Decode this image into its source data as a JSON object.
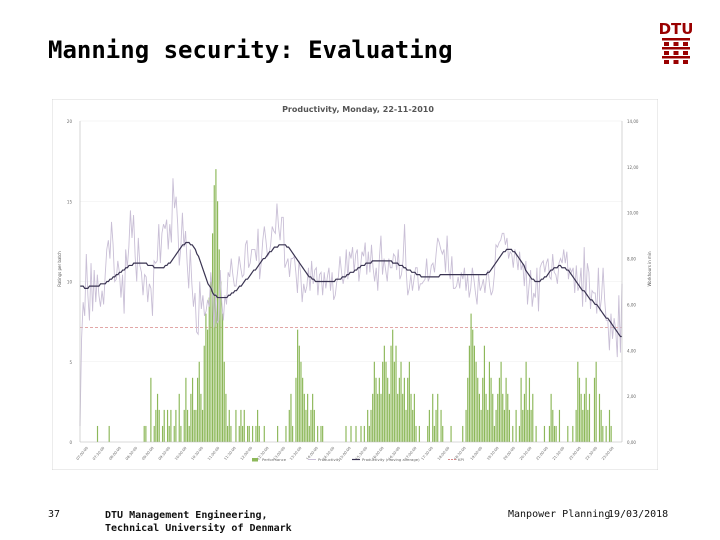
{
  "slide": {
    "title": "Manning security: Evaluating",
    "logo_text": "DTU"
  },
  "footer": {
    "page_number": "37",
    "org_line1": "DTU Management Engineering,",
    "org_line2": "Technical University of Denmark",
    "topic": "Manpower Planning",
    "date": "19/03/2018"
  },
  "colors": {
    "bar": "#8db85a",
    "productivity": "#c9bfd6",
    "moving_avg": "#3a3452",
    "target": "#d98a8a",
    "logo": "#990000"
  },
  "chart_data": {
    "type": "bar",
    "title": "Productivity, Monday, 22-11-2010",
    "ylabel": "Ratings per batch",
    "y2label": "Workhours in min",
    "ylim": [
      0,
      20
    ],
    "y2lim": [
      0,
      14
    ],
    "left_ticks": [
      "20",
      "15",
      "10",
      "5",
      "0"
    ],
    "right_ticks": [
      "14,00",
      "12,00",
      "10,00",
      "8,00",
      "6,00",
      "4,00",
      "2,00",
      "0,00"
    ],
    "x_labels": [
      "07:00:00",
      "07:30:00",
      "08:00:00",
      "08:30:00",
      "09:00:00",
      "09:30:00",
      "10:00:00",
      "10:30:00",
      "11:00:00",
      "11:30:00",
      "12:00:00",
      "12:30:00",
      "13:00:00",
      "13:30:00",
      "14:00:00",
      "14:30:00",
      "15:00:00",
      "15:30:00",
      "16:00:00",
      "16:30:00",
      "17:00:00",
      "17:30:00",
      "18:00:00",
      "18:30:00",
      "19:00:00",
      "19:30:00",
      "20:00:00",
      "20:30:00",
      "21:00:00",
      "21:30:00",
      "22:00:00",
      "22:30:00",
      "23:00:00"
    ],
    "legend": [
      "Performance",
      "Productivity",
      "Productivity (moving average)",
      "KPI"
    ],
    "legend_position": "bottom",
    "target_value": 5.0,
    "bars": [
      0,
      0,
      0,
      0,
      0,
      0,
      0,
      0,
      0,
      0,
      1,
      0,
      0,
      0,
      0,
      0,
      0,
      1,
      0,
      0,
      0,
      0,
      0,
      0,
      0,
      0,
      0,
      0,
      0,
      0,
      0,
      0,
      0,
      0,
      0,
      0,
      0,
      0,
      1,
      1,
      0,
      0,
      4,
      0,
      1,
      2,
      3,
      2,
      0,
      1,
      2,
      0,
      2,
      1,
      2,
      0,
      1,
      2,
      0,
      3,
      1,
      0,
      2,
      4,
      2,
      1,
      3,
      4,
      2,
      2,
      4,
      5,
      3,
      2,
      6,
      8,
      7,
      9,
      10,
      13,
      16,
      17,
      15,
      12,
      10,
      8,
      5,
      3,
      1,
      2,
      1,
      0,
      0,
      2,
      0,
      1,
      2,
      1,
      2,
      0,
      1,
      1,
      0,
      1,
      0,
      1,
      2,
      1,
      0,
      0,
      1,
      0,
      0,
      0,
      0,
      0,
      0,
      0,
      1,
      0,
      0,
      0,
      0,
      1,
      0,
      2,
      3,
      1,
      0,
      4,
      7,
      6,
      5,
      4,
      3,
      2,
      3,
      1,
      2,
      3,
      2,
      0,
      1,
      0,
      1,
      1,
      0,
      0,
      0,
      0,
      0,
      0,
      0,
      0,
      0,
      0,
      0,
      0,
      0,
      1,
      0,
      0,
      1,
      0,
      0,
      1,
      0,
      0,
      1,
      0,
      1,
      0,
      2,
      1,
      2,
      3,
      5,
      4,
      3,
      4,
      3,
      5,
      6,
      5,
      4,
      3,
      6,
      7,
      5,
      6,
      3,
      4,
      5,
      3,
      4,
      2,
      4,
      5,
      3,
      2,
      3,
      1,
      0,
      1,
      0,
      0,
      0,
      0,
      1,
      2,
      0,
      3,
      1,
      2,
      3,
      0,
      2,
      1,
      0,
      0,
      0,
      0,
      1,
      0,
      0,
      0,
      0,
      0,
      0,
      1,
      0,
      2,
      4,
      6,
      8,
      7,
      6,
      5,
      4,
      3,
      2,
      4,
      6,
      3,
      2,
      5,
      4,
      3,
      1,
      2,
      3,
      4,
      5,
      3,
      2,
      4,
      3,
      2,
      0,
      1,
      0,
      2,
      0,
      1,
      4,
      2,
      3,
      5,
      2,
      4,
      2,
      3,
      0,
      1,
      0,
      0,
      0,
      0,
      1,
      0,
      0,
      1,
      3,
      2,
      1,
      1,
      0,
      2,
      0,
      0,
      0,
      0,
      1,
      0,
      0,
      1,
      0,
      2,
      5,
      4,
      3,
      2,
      3,
      4,
      2,
      3,
      0,
      0,
      4,
      5,
      0,
      3,
      2,
      1,
      0,
      1,
      0,
      2,
      1,
      0,
      0,
      0,
      0,
      0,
      0
    ],
    "productivity": [
      0.7,
      4.5,
      6.1,
      5.5,
      8.2,
      6.4,
      5.3,
      7.8,
      5.7,
      7.5,
      6.1,
      7.3,
      6.4,
      5.9,
      6.6,
      6.0,
      7.3,
      8.4,
      8.8,
      8.0,
      9.6,
      8.6,
      7.0,
      7.1,
      7.9,
      7.4,
      6.3,
      7.3,
      5.6,
      8.4,
      7.6,
      8.5,
      10.1,
      8.9,
      9.9,
      8.1,
      7.0,
      8.9,
      7.7,
      7.4,
      6.4,
      7.3,
      7.2,
      6.1,
      6.9,
      6.7,
      5.5,
      7.9,
      7.8,
      7.9,
      9.5,
      7.8,
      9.1,
      9.5,
      9.3,
      9.7,
      8.4,
      9.5,
      8.7,
      11.5,
      10.2,
      10.7,
      9.5,
      7.7,
      8.5,
      10.0,
      8.5,
      9.2,
      7.8,
      6.7,
      8.4,
      6.9,
      5.9,
      6.5,
      4.8,
      4.7,
      7.0,
      5.8,
      6.4,
      5.5,
      5.7,
      6.2,
      5.9,
      7.4,
      6.6,
      5.0,
      6.5,
      5.2,
      5.3,
      7.5,
      6.1,
      5.3,
      6.4,
      6.0,
      7.4,
      7.2,
      8.0,
      7.3,
      6.8,
      6.8,
      7.4,
      8.1,
      7.6,
      7.2,
      7.3,
      8.6,
      8.8,
      7.6,
      7.8,
      8.4,
      8.4,
      8.4,
      7.9,
      9.3,
      7.1,
      7.8,
      8.8,
      9.4,
      8.8,
      8.1,
      8.2,
      8.6,
      9.4,
      9.2,
      9.1,
      10.4,
      9.4,
      8.8,
      9.8,
      9.8,
      7.6,
      7.8,
      8.0,
      7.2,
      8.0,
      8.0,
      8.1,
      7.4,
      6.5,
      7.9,
      7.4,
      6.1,
      6.9,
      6.5,
      6.8,
      7.6,
      6.6,
      7.9,
      6.9,
      7.5,
      7.6,
      6.4,
      7.3,
      7.4,
      6.4,
      7.4,
      6.7,
      7.2,
      7.6,
      6.6,
      7.4,
      6.2,
      6.4,
      7.0,
      7.2,
      8.1,
      7.4,
      6.9,
      7.3,
      8.4,
      7.1,
      8.3,
      8.0,
      8.5,
      7.4,
      8.2,
      8.4,
      7.0,
      7.6,
      8.3,
      8.1,
      8.7,
      7.3,
      8.3,
      7.4,
      8.6,
      7.6,
      7.0,
      7.6,
      6.6,
      8.0,
      9.0,
      7.3,
      8.0,
      7.5,
      7.0,
      8.0,
      7.6,
      7.6,
      8.2,
      8.1,
      7.5,
      8.4,
      7.1,
      7.3,
      7.9,
      9.5,
      7.5,
      6.4,
      6.7,
      7.3,
      6.6,
      7.1,
      7.6,
      7.6,
      6.6,
      6.9,
      6.9,
      7.0,
      7.1,
      8.0,
      7.0,
      7.2,
      7.7,
      7.8,
      7.4,
      8.2,
      8.9,
      8.7,
      8.4,
      8.2,
      8.4,
      7.4,
      9.0,
      7.5,
      7.1,
      8.1,
      6.7,
      6.7,
      6.8,
      7.2,
      6.7,
      7.4,
      7.1,
      7.6,
      6.6,
      7.3,
      6.3,
      6.7,
      7.6,
      7.1,
      6.5,
      6.0,
      7.3,
      6.6,
      6.8,
      7.1,
      6.5,
      7.2,
      7.5,
      6.8,
      6.4,
      6.6,
      7.3,
      8.6,
      8.5,
      8.7,
      8.8,
      9.1,
      9.1,
      8.6,
      8.9,
      8.0,
      8.3,
      8.2,
      7.6,
      8.4,
      8.1,
      7.5,
      8.3,
      7.5,
      7.8,
      6.8,
      7.9,
      6.0,
      6.8,
      7.5,
      5.9,
      6.5,
      6.3,
      7.6,
      5.7,
      7.6,
      7.8,
      7.9,
      7.4,
      7.8,
      8.0,
      7.2,
      7.1,
      8.2,
      7.4,
      7.3,
      6.9,
      7.8,
      8.0,
      7.8,
      8.4,
      7.8,
      8.3,
      7.1,
      7.6,
      7.4,
      7.6,
      6.5,
      7.7,
      6.6,
      6.8,
      7.6,
      5.9,
      8.5,
      6.1,
      7.8,
      7.4,
      5.8,
      6.6,
      6.5,
      6.5,
      5.6,
      7.6,
      5.7,
      6.3,
      7.6,
      6.2,
      5.3,
      5.3,
      4.0,
      5.6,
      4.5,
      5.4,
      4.9,
      3.7,
      6.4,
      3.9,
      6.9
    ],
    "moving_avg": [
      6.8,
      6.8,
      6.8,
      6.7,
      6.7,
      6.7,
      6.8,
      6.8,
      6.8,
      6.8,
      6.8,
      6.8,
      6.8,
      6.9,
      6.9,
      6.9,
      6.9,
      7.0,
      7.0,
      7.1,
      7.1,
      7.2,
      7.2,
      7.3,
      7.3,
      7.4,
      7.4,
      7.5,
      7.5,
      7.6,
      7.6,
      7.7,
      7.7,
      7.7,
      7.8,
      7.8,
      7.8,
      7.8,
      7.8,
      7.8,
      7.8,
      7.8,
      7.8,
      7.7,
      7.7,
      7.7,
      7.7,
      7.6,
      7.6,
      7.6,
      7.6,
      7.6,
      7.6,
      7.6,
      7.7,
      7.7,
      7.8,
      7.8,
      7.9,
      8.0,
      8.1,
      8.2,
      8.3,
      8.4,
      8.5,
      8.6,
      8.6,
      8.7,
      8.7,
      8.7,
      8.6,
      8.6,
      8.5,
      8.4,
      8.2,
      8.1,
      7.9,
      7.7,
      7.5,
      7.3,
      7.1,
      6.9,
      6.8,
      6.7,
      6.5,
      6.4,
      6.4,
      6.3,
      6.3,
      6.3,
      6.3,
      6.3,
      6.3,
      6.3,
      6.4,
      6.4,
      6.5,
      6.5,
      6.6,
      6.6,
      6.7,
      6.8,
      6.8,
      6.9,
      7.0,
      7.1,
      7.1,
      7.2,
      7.3,
      7.4,
      7.5,
      7.5,
      7.6,
      7.7,
      7.8,
      7.9,
      8.0,
      8.0,
      8.1,
      8.2,
      8.3,
      8.3,
      8.4,
      8.5,
      8.5,
      8.5,
      8.6,
      8.6,
      8.6,
      8.6,
      8.6,
      8.5,
      8.5,
      8.4,
      8.3,
      8.2,
      8.1,
      8.0,
      7.9,
      7.8,
      7.7,
      7.6,
      7.5,
      7.4,
      7.3,
      7.2,
      7.2,
      7.1,
      7.1,
      7.0,
      7.0,
      7.0,
      7.0,
      7.0,
      7.0,
      7.0,
      7.0,
      7.0,
      7.0,
      7.0,
      7.0,
      7.0,
      7.1,
      7.1,
      7.1,
      7.1,
      7.2,
      7.2,
      7.2,
      7.3,
      7.3,
      7.4,
      7.4,
      7.4,
      7.5,
      7.5,
      7.6,
      7.6,
      7.7,
      7.7,
      7.7,
      7.8,
      7.8,
      7.8,
      7.8,
      7.9,
      7.9,
      7.9,
      7.9,
      7.9,
      7.9,
      7.9,
      7.9,
      7.9,
      7.9,
      7.9,
      7.9,
      7.9,
      7.8,
      7.8,
      7.8,
      7.8,
      7.7,
      7.7,
      7.7,
      7.6,
      7.6,
      7.5,
      7.5,
      7.5,
      7.4,
      7.4,
      7.4,
      7.3,
      7.3,
      7.3,
      7.2,
      7.2,
      7.2,
      7.2,
      7.2,
      7.2,
      7.2,
      7.2,
      7.2,
      7.2,
      7.2,
      7.2,
      7.3,
      7.3,
      7.3,
      7.3,
      7.3,
      7.3,
      7.3,
      7.3,
      7.3,
      7.3,
      7.3,
      7.3,
      7.3,
      7.3,
      7.3,
      7.3,
      7.3,
      7.3,
      7.3,
      7.3,
      7.3,
      7.3,
      7.3,
      7.3,
      7.3,
      7.3,
      7.3,
      7.3,
      7.3,
      7.3,
      7.4,
      7.4,
      7.5,
      7.6,
      7.7,
      7.8,
      7.9,
      8.0,
      8.1,
      8.2,
      8.3,
      8.3,
      8.4,
      8.4,
      8.4,
      8.4,
      8.3,
      8.3,
      8.2,
      8.1,
      8.0,
      7.9,
      7.8,
      7.7,
      7.5,
      7.4,
      7.3,
      7.2,
      7.1,
      7.1,
      7.0,
      7.0,
      7.0,
      7.0,
      7.1,
      7.1,
      7.2,
      7.2,
      7.3,
      7.4,
      7.5,
      7.5,
      7.6,
      7.6,
      7.6,
      7.7,
      7.7,
      7.6,
      7.6,
      7.6,
      7.5,
      7.5,
      7.4,
      7.3,
      7.2,
      7.1,
      7.0,
      6.9,
      6.8,
      6.7,
      6.6,
      6.6,
      6.5,
      6.4,
      6.3,
      6.2,
      6.2,
      6.1,
      6.0,
      6.0,
      5.9,
      5.8,
      5.7,
      5.6,
      5.5,
      5.4,
      5.4,
      5.3,
      5.2,
      5.1,
      5.0,
      4.9,
      4.8,
      4.7,
      4.6,
      4.6
    ]
  }
}
